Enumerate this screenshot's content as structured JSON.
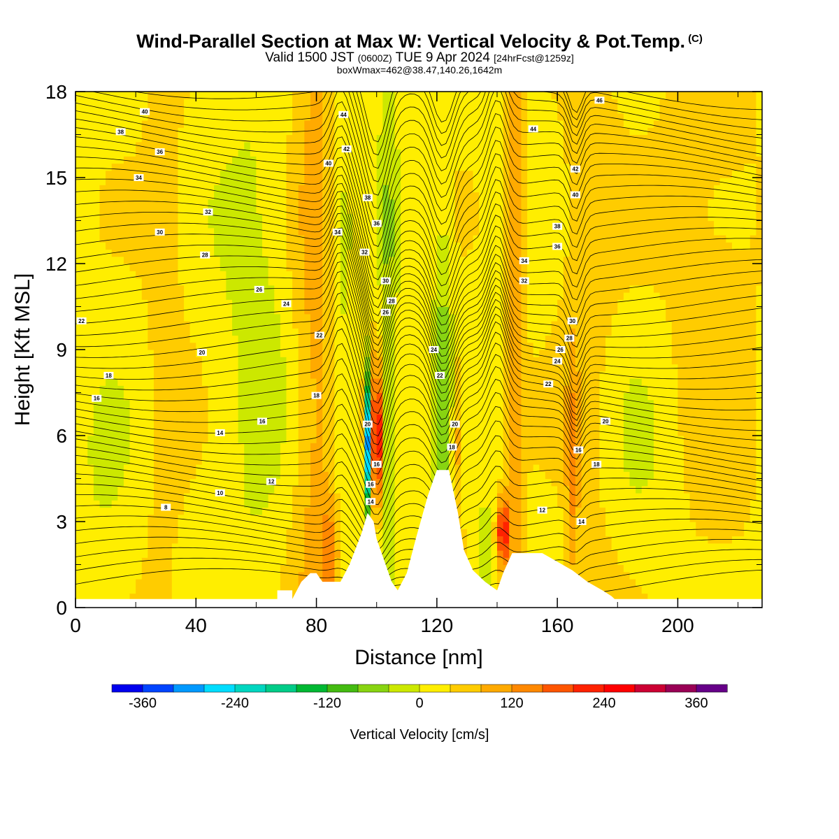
{
  "title": {
    "main": "Wind-Parallel Section at Max W: Vertical Velocity & Pot.Temp.",
    "copyright": "(C)",
    "valid_prefix": "Valid 1500 JST",
    "utc": "(0600Z)",
    "valid_date": "TUE 9 Apr 2024",
    "forecast": "[24hrFcst@1259z]",
    "boxinfo": "boxWmax=462@38.47,140.26,1642m"
  },
  "chart_data": {
    "type": "heatmap",
    "xlabel": "Distance [nm]",
    "ylabel": "Height [Kft MSL]",
    "xlim": [
      0,
      228
    ],
    "ylim": [
      0,
      18
    ],
    "x_ticks": [
      "0",
      "40",
      "80",
      "120",
      "160",
      "200"
    ],
    "x_tick_values": [
      0,
      40,
      80,
      120,
      160,
      200
    ],
    "y_ticks": [
      "0",
      "3",
      "6",
      "9",
      "12",
      "15",
      "18"
    ],
    "y_tick_values": [
      0,
      3,
      6,
      9,
      12,
      15,
      18
    ],
    "colorbar": {
      "label": "Vertical Velocity [cm/s]",
      "range": [
        -400,
        400
      ],
      "tick_labels": [
        "-360",
        "-240",
        "-120",
        "0",
        "120",
        "240",
        "360"
      ],
      "tick_values": [
        -360,
        -240,
        -120,
        0,
        120,
        240,
        360
      ],
      "colors": [
        "#0000ee",
        "#0044ff",
        "#0099ff",
        "#00ddff",
        "#00d6c0",
        "#00cc88",
        "#00b833",
        "#44bb11",
        "#88d411",
        "#cce800",
        "#ffee00",
        "#ffcc00",
        "#ffaa00",
        "#ff8800",
        "#ff5500",
        "#ff2200",
        "#ff0000",
        "#cc0033",
        "#990055",
        "#660088"
      ]
    },
    "terrain_profile": {
      "x": [
        0,
        67,
        67,
        72,
        72,
        75,
        78,
        80,
        82,
        88,
        91,
        95,
        97,
        99,
        100,
        102,
        105,
        107,
        110,
        113,
        117,
        120,
        122,
        124,
        126,
        127,
        129,
        132,
        136,
        140,
        142,
        145,
        148,
        155,
        160,
        165,
        170,
        175,
        178,
        179,
        228
      ],
      "y": [
        0.3,
        0.3,
        0.6,
        0.6,
        0.3,
        0.9,
        1.2,
        1.2,
        0.9,
        0.9,
        1.5,
        2.6,
        3.3,
        3.0,
        2.4,
        1.8,
        0.9,
        0.6,
        1.2,
        2.4,
        3.9,
        4.8,
        4.8,
        4.8,
        3.8,
        3.3,
        2.0,
        1.3,
        0.9,
        0.6,
        1.2,
        1.9,
        1.9,
        1.9,
        1.6,
        1.3,
        0.9,
        0.6,
        0.4,
        0.3,
        0.3
      ]
    },
    "theta_contour_labels": [
      {
        "text": "40",
        "x": 23,
        "y": 17.3
      },
      {
        "text": "38",
        "x": 15,
        "y": 16.6
      },
      {
        "text": "36",
        "x": 28,
        "y": 15.9
      },
      {
        "text": "34",
        "x": 21,
        "y": 15.0
      },
      {
        "text": "32",
        "x": 44,
        "y": 13.8
      },
      {
        "text": "30",
        "x": 28,
        "y": 13.1
      },
      {
        "text": "28",
        "x": 43,
        "y": 12.3
      },
      {
        "text": "26",
        "x": 61,
        "y": 11.1
      },
      {
        "text": "24",
        "x": 70,
        "y": 10.6
      },
      {
        "text": "22",
        "x": 2,
        "y": 10.0
      },
      {
        "text": "22",
        "x": 81,
        "y": 9.5
      },
      {
        "text": "20",
        "x": 42,
        "y": 8.9
      },
      {
        "text": "18",
        "x": 11,
        "y": 8.1
      },
      {
        "text": "18",
        "x": 80,
        "y": 7.4
      },
      {
        "text": "16",
        "x": 7,
        "y": 7.3
      },
      {
        "text": "16",
        "x": 62,
        "y": 6.5
      },
      {
        "text": "14",
        "x": 48,
        "y": 6.1
      },
      {
        "text": "12",
        "x": 65,
        "y": 4.4
      },
      {
        "text": "10",
        "x": 48,
        "y": 4.0
      },
      {
        "text": "8",
        "x": 30,
        "y": 3.5
      },
      {
        "text": "44",
        "x": 89,
        "y": 17.2
      },
      {
        "text": "42",
        "x": 90,
        "y": 16.0
      },
      {
        "text": "40",
        "x": 84,
        "y": 15.5
      },
      {
        "text": "38",
        "x": 97,
        "y": 14.3
      },
      {
        "text": "36",
        "x": 100,
        "y": 13.4
      },
      {
        "text": "34",
        "x": 87,
        "y": 13.1
      },
      {
        "text": "32",
        "x": 96,
        "y": 12.4
      },
      {
        "text": "30",
        "x": 103,
        "y": 11.4
      },
      {
        "text": "28",
        "x": 105,
        "y": 10.7
      },
      {
        "text": "26",
        "x": 103,
        "y": 10.3
      },
      {
        "text": "24",
        "x": 119,
        "y": 9.0
      },
      {
        "text": "22",
        "x": 121,
        "y": 8.1
      },
      {
        "text": "20",
        "x": 97,
        "y": 6.4
      },
      {
        "text": "20",
        "x": 126,
        "y": 6.4
      },
      {
        "text": "18",
        "x": 125,
        "y": 5.6
      },
      {
        "text": "16",
        "x": 100,
        "y": 5.0
      },
      {
        "text": "16",
        "x": 98,
        "y": 4.3
      },
      {
        "text": "14",
        "x": 98,
        "y": 3.7
      },
      {
        "text": "46",
        "x": 174,
        "y": 17.7
      },
      {
        "text": "44",
        "x": 152,
        "y": 16.7
      },
      {
        "text": "42",
        "x": 166,
        "y": 15.3
      },
      {
        "text": "40",
        "x": 166,
        "y": 14.4
      },
      {
        "text": "38",
        "x": 160,
        "y": 13.3
      },
      {
        "text": "36",
        "x": 160,
        "y": 12.6
      },
      {
        "text": "34",
        "x": 149,
        "y": 12.1
      },
      {
        "text": "32",
        "x": 149,
        "y": 11.4
      },
      {
        "text": "30",
        "x": 165,
        "y": 10.0
      },
      {
        "text": "28",
        "x": 164,
        "y": 9.4
      },
      {
        "text": "26",
        "x": 161,
        "y": 9.0
      },
      {
        "text": "24",
        "x": 160,
        "y": 8.6
      },
      {
        "text": "22",
        "x": 157,
        "y": 7.8
      },
      {
        "text": "20",
        "x": 176,
        "y": 6.5
      },
      {
        "text": "18",
        "x": 173,
        "y": 5.0
      },
      {
        "text": "16",
        "x": 167,
        "y": 5.5
      },
      {
        "text": "12",
        "x": 155,
        "y": 3.4
      },
      {
        "text": "14",
        "x": 168,
        "y": 3.0
      }
    ]
  }
}
